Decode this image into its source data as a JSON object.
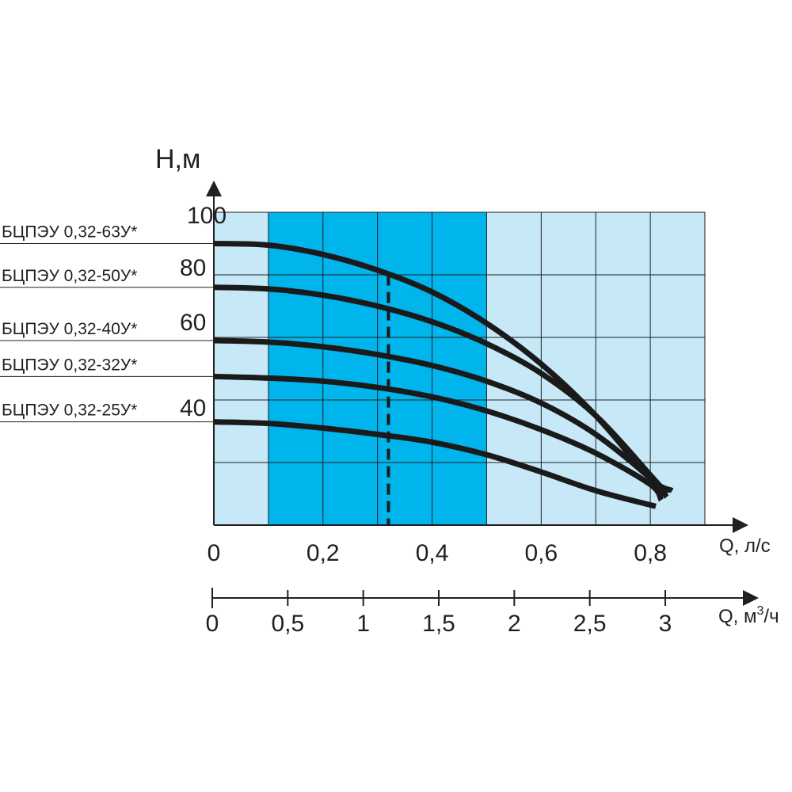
{
  "chart_data": {
    "type": "line",
    "y_title": "Н,м",
    "x_title": "Q, л/с",
    "x2_title_main": "Q, м",
    "x2_title_sup": "3",
    "x2_title_tail": "/ч",
    "ylim": [
      0,
      100
    ],
    "xlim": [
      0,
      0.9
    ],
    "y_ticks": [
      "100",
      "80",
      "60",
      "40"
    ],
    "y_tick_values": [
      100,
      80,
      60,
      40
    ],
    "x_ticks": [
      "0",
      "0,2",
      "0,4",
      "0,6",
      "0,8"
    ],
    "x_tick_values": [
      0,
      0.2,
      0.4,
      0.6,
      0.8
    ],
    "x2_ticks": [
      "0",
      "0,5",
      "1",
      "1,5",
      "2",
      "2,5",
      "3"
    ],
    "x2_tick_values": [
      0,
      0.5,
      1,
      1.5,
      2,
      2.5,
      3
    ],
    "grid": true,
    "working_range": [
      0.1,
      0.5
    ],
    "marker_q": 0.32,
    "colors": {
      "background_zone": "#c6e8f7",
      "working_zone": "#00b4ec",
      "grid": "#231f20",
      "curve": "#1a1a1a"
    },
    "series": [
      {
        "name": "БЦПЭУ 0,32-63У*",
        "x": [
          0,
          0.1,
          0.2,
          0.3,
          0.4,
          0.5,
          0.6,
          0.7,
          0.8,
          0.84
        ],
        "y": [
          90,
          89.5,
          86.5,
          81.5,
          74.5,
          64.5,
          51.5,
          35,
          15,
          11
        ]
      },
      {
        "name": "БЦПЭУ 0,32-50У*",
        "x": [
          0,
          0.1,
          0.2,
          0.3,
          0.4,
          0.5,
          0.6,
          0.7,
          0.8,
          0.83
        ],
        "y": [
          76,
          75.5,
          73.5,
          70,
          65,
          58,
          48.5,
          35,
          16,
          10
        ]
      },
      {
        "name": "БЦПЭУ 0,32-40У*",
        "x": [
          0,
          0.1,
          0.2,
          0.3,
          0.4,
          0.5,
          0.6,
          0.7,
          0.8,
          0.83
        ],
        "y": [
          59,
          58.5,
          57,
          54.5,
          51,
          46,
          39,
          29,
          15,
          9
        ]
      },
      {
        "name": "БЦПЭУ 0,32-32У*",
        "x": [
          0,
          0.1,
          0.2,
          0.3,
          0.4,
          0.5,
          0.6,
          0.7,
          0.8,
          0.82
        ],
        "y": [
          47.5,
          47,
          46,
          44,
          41,
          36.5,
          30.5,
          23,
          13,
          8
        ]
      },
      {
        "name": "БЦПЭУ 0,32-25У*",
        "x": [
          0,
          0.1,
          0.2,
          0.3,
          0.4,
          0.5,
          0.6,
          0.7,
          0.81
        ],
        "y": [
          33,
          32.5,
          31,
          29,
          26.5,
          22.5,
          17,
          11,
          6
        ]
      }
    ]
  }
}
